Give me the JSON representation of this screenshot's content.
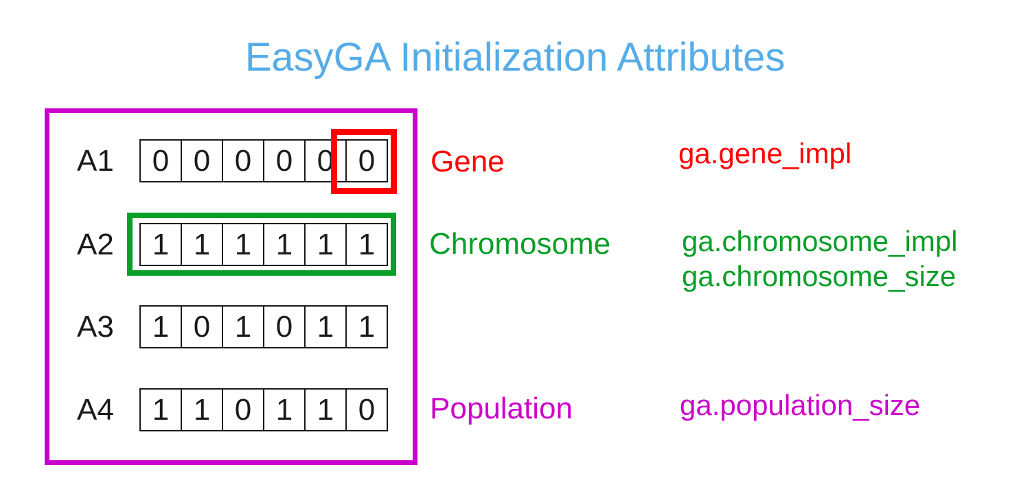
{
  "title": {
    "text": "EasyGA Initialization Attributes",
    "color": "#55ACE8"
  },
  "colors": {
    "title_blue": "#55ACE8",
    "gene_red": "#FF0000",
    "chromosome_green": "#0A9F28",
    "population_magenta": "#CC00CC",
    "cell_black": "#1A1A1A"
  },
  "population_box": {
    "rows": [
      {
        "label": "A1",
        "genes": [
          "0",
          "0",
          "0",
          "0",
          "0",
          "0"
        ]
      },
      {
        "label": "A2",
        "genes": [
          "1",
          "1",
          "1",
          "1",
          "1",
          "1"
        ]
      },
      {
        "label": "A3",
        "genes": [
          "1",
          "0",
          "1",
          "0",
          "1",
          "1"
        ]
      },
      {
        "label": "A4",
        "genes": [
          "1",
          "1",
          "0",
          "1",
          "1",
          "0"
        ]
      }
    ]
  },
  "annotations": {
    "gene": {
      "label": "Gene",
      "attribute": "ga.gene_impl",
      "color": "#FF0000"
    },
    "chromosome": {
      "label": "Chromosome",
      "attribute_impl": "ga.chromosome_impl",
      "attribute_size": "ga.chromosome_size",
      "color": "#0A9F28"
    },
    "population": {
      "label": "Population",
      "attribute": "ga.population_size",
      "color": "#CC00CC"
    }
  }
}
